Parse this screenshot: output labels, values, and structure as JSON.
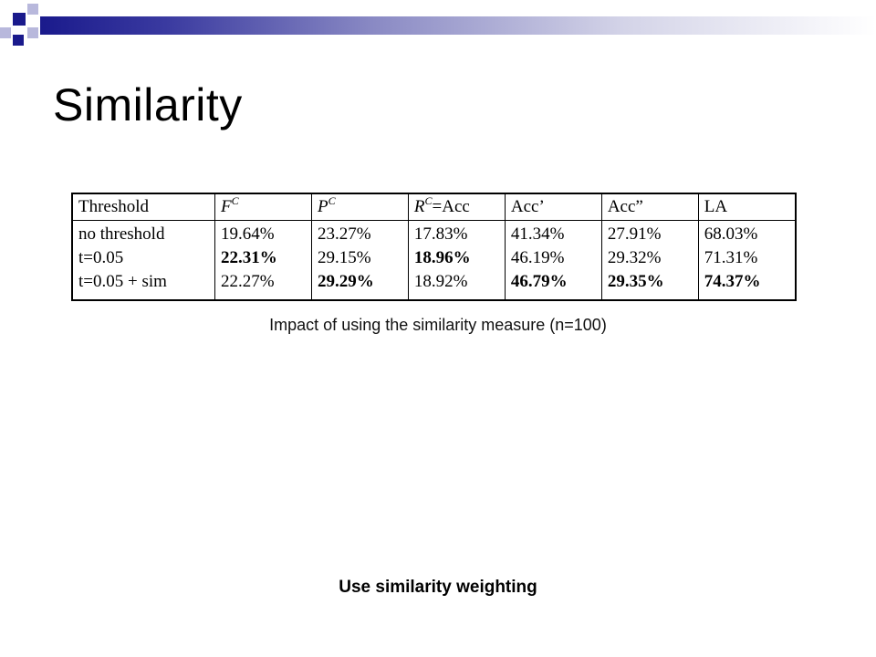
{
  "title": "Similarity",
  "table": {
    "headers": [
      {
        "label": "Threshold"
      },
      {
        "main": "F",
        "sup": "C",
        "suffix": ""
      },
      {
        "main": "P",
        "sup": "C",
        "suffix": ""
      },
      {
        "main": "R",
        "sup": "C",
        "suffix": "=Acc"
      },
      {
        "label": "Acc’"
      },
      {
        "label": "Acc”"
      },
      {
        "label": "LA"
      }
    ],
    "rows": [
      {
        "cells": [
          "no threshold",
          "19.64%",
          "23.27%",
          "17.83%",
          "41.34%",
          "27.91%",
          "68.03%"
        ],
        "bold": []
      },
      {
        "cells": [
          "t=0.05",
          "22.31%",
          "29.15%",
          "18.96%",
          "46.19%",
          "29.32%",
          "71.31%"
        ],
        "bold": [
          1,
          3
        ]
      },
      {
        "cells": [
          "t=0.05 + sim",
          "22.27%",
          "29.29%",
          "18.92%",
          "46.79%",
          "29.35%",
          "74.37%"
        ],
        "bold": [
          2,
          4,
          5,
          6
        ]
      }
    ]
  },
  "caption": "Impact of using the similarity measure (n=100)",
  "footer_note": "Use similarity weighting",
  "colors": {
    "accent_dark": "#1a1a8c",
    "accent_light": "#b8b8dc"
  }
}
